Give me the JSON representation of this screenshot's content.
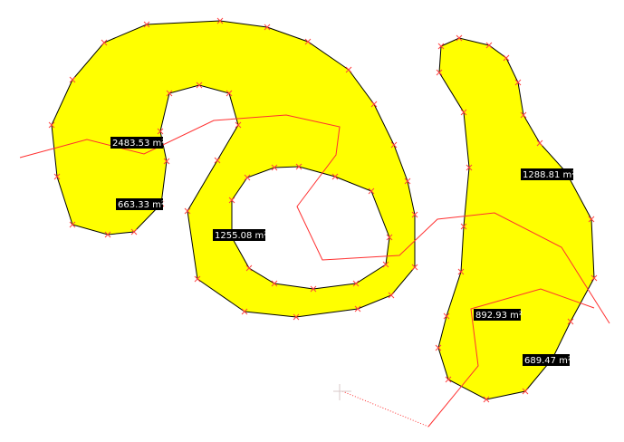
{
  "map": {
    "fill_color": "#ffff00",
    "outline_color": "#000000",
    "vertex_marker_color": "#ff4040",
    "measure_line_color": "#ff2020",
    "label_bg_color": "#000000",
    "label_text_color": "#ffffff"
  },
  "labels": {
    "area_1": "2483.53 m²",
    "area_2": "663.33 m²",
    "area_3": "1255.08 m²",
    "area_4": "1288.81 m²",
    "area_5": "892.93 m²",
    "area_6": "689.47 m²"
  }
}
